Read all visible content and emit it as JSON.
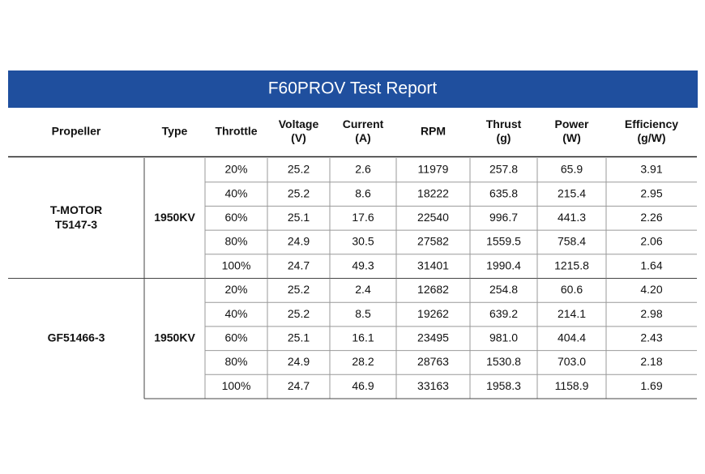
{
  "title": "F60PROV Test Report",
  "table": {
    "headers": [
      [
        "Propeller"
      ],
      [
        "Type"
      ],
      [
        "Throttle"
      ],
      [
        "Voltage",
        "(V)"
      ],
      [
        "Current",
        "(A)"
      ],
      [
        "RPM"
      ],
      [
        "Thrust",
        "(g)"
      ],
      [
        "Power",
        "(W)"
      ],
      [
        "Efficiency",
        "(g/W)"
      ]
    ],
    "groups": [
      {
        "propeller": [
          "T-MOTOR",
          "T5147-3"
        ],
        "type": "1950KV",
        "rows": [
          [
            "20%",
            "25.2",
            "2.6",
            "11979",
            "257.8",
            "65.9",
            "3.91"
          ],
          [
            "40%",
            "25.2",
            "8.6",
            "18222",
            "635.8",
            "215.4",
            "2.95"
          ],
          [
            "60%",
            "25.1",
            "17.6",
            "22540",
            "996.7",
            "441.3",
            "2.26"
          ],
          [
            "80%",
            "24.9",
            "30.5",
            "27582",
            "1559.5",
            "758.4",
            "2.06"
          ],
          [
            "100%",
            "24.7",
            "49.3",
            "31401",
            "1990.4",
            "1215.8",
            "1.64"
          ]
        ]
      },
      {
        "propeller": [
          "GF51466-3"
        ],
        "type": "1950KV",
        "rows": [
          [
            "20%",
            "25.2",
            "2.4",
            "12682",
            "254.8",
            "60.6",
            "4.20"
          ],
          [
            "40%",
            "25.2",
            "8.5",
            "19262",
            "639.2",
            "214.1",
            "2.98"
          ],
          [
            "60%",
            "25.1",
            "16.1",
            "23495",
            "981.0",
            "404.4",
            "2.43"
          ],
          [
            "80%",
            "24.9",
            "28.2",
            "28763",
            "1530.8",
            "703.0",
            "2.18"
          ],
          [
            "100%",
            "24.7",
            "46.9",
            "33163",
            "1958.3",
            "1158.9",
            "1.69"
          ]
        ]
      }
    ]
  }
}
